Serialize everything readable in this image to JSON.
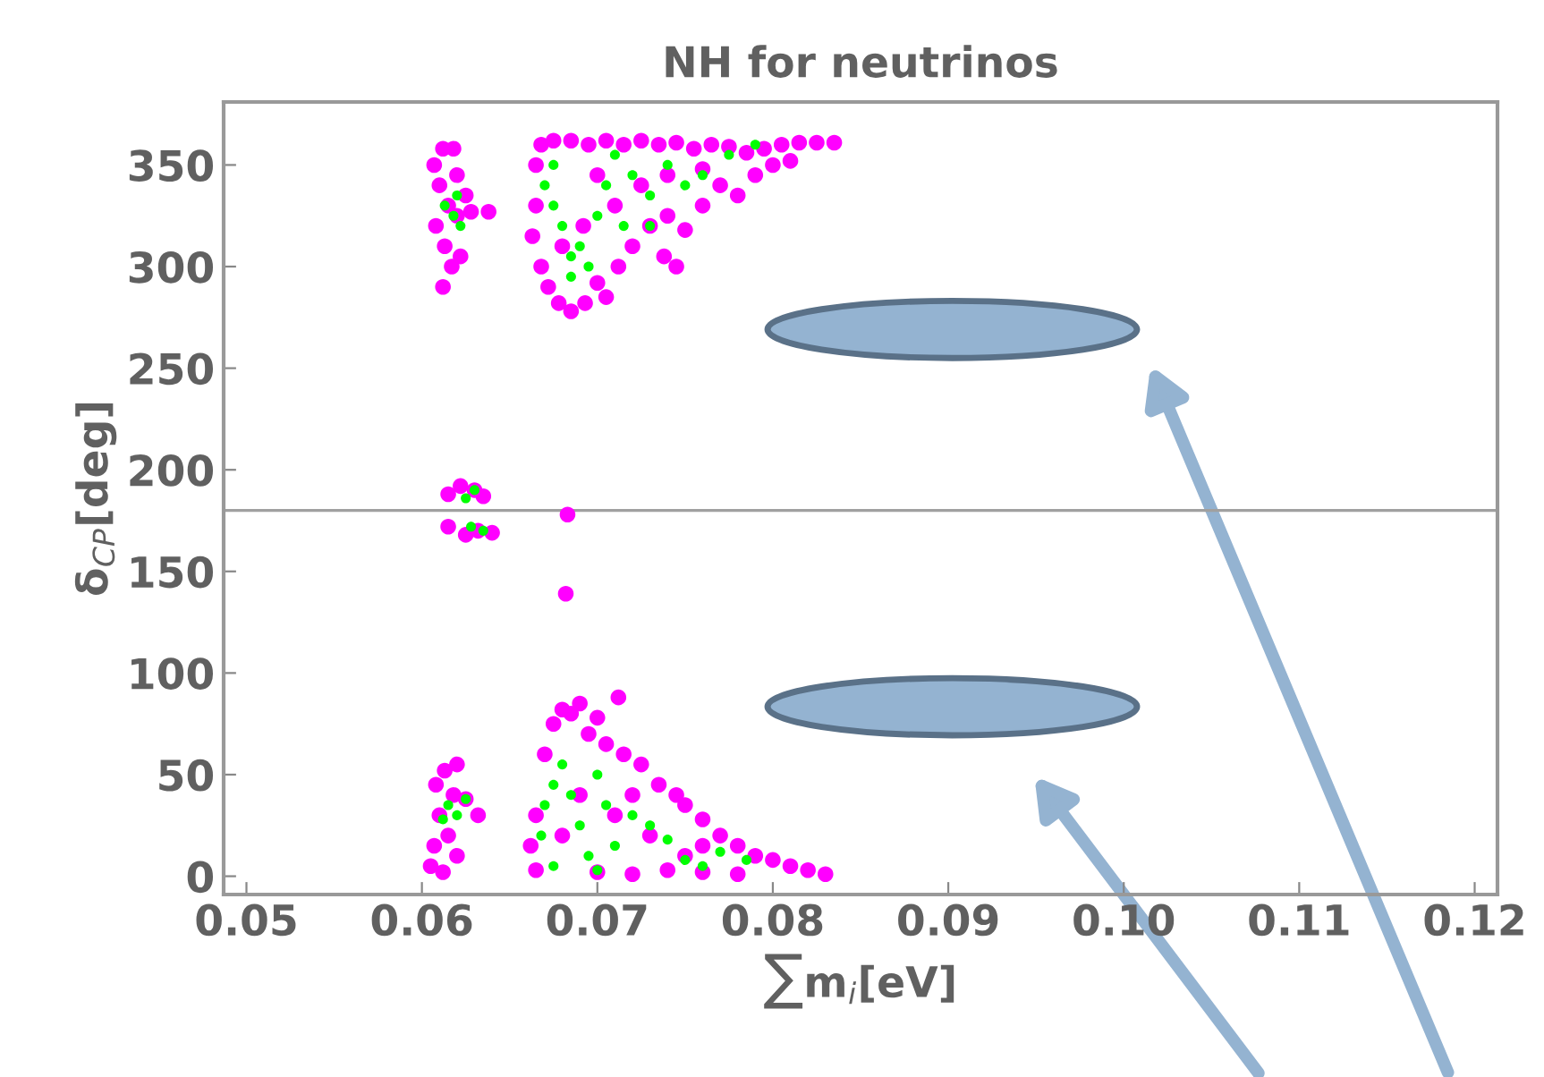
{
  "chart_data": {
    "type": "scatter",
    "title": "NH for neutrinos",
    "xlabel": "∑m$_{i}$[eV]",
    "ylabel": "δ$_{CP}$[deg]",
    "xlim": [
      0.0487,
      0.1213
    ],
    "ylim": [
      -9,
      381
    ],
    "xticks": [
      0.05,
      0.06,
      0.07,
      0.08,
      0.09,
      {
        "value": 0.1,
        "label": "0.10"
      },
      0.11,
      0.12
    ],
    "yticks": [
      0,
      50,
      100,
      150,
      200,
      250,
      300,
      350
    ],
    "grid": false,
    "marker": "circle",
    "ref_lines": [
      {
        "axis": "y",
        "value": 180,
        "color": "#a0a0a0"
      }
    ],
    "series": [
      {
        "color": "#ff00ff",
        "x": [
          0.0607,
          0.0612,
          0.0618,
          0.061,
          0.0615,
          0.062,
          0.0608,
          0.0613,
          0.0617,
          0.0612,
          0.062,
          0.0628,
          0.0638,
          0.0625,
          0.0622,
          0.0665,
          0.0668,
          0.0675,
          0.0685,
          0.0695,
          0.0705,
          0.0715,
          0.0725,
          0.0735,
          0.0745,
          0.0755,
          0.0765,
          0.0775,
          0.0785,
          0.0795,
          0.0805,
          0.0815,
          0.0825,
          0.0835,
          0.0665,
          0.0663,
          0.0668,
          0.0672,
          0.0678,
          0.0685,
          0.0693,
          0.07,
          0.0705,
          0.0712,
          0.072,
          0.073,
          0.0738,
          0.0745,
          0.075,
          0.076,
          0.077,
          0.078,
          0.079,
          0.08,
          0.081,
          0.0692,
          0.071,
          0.0725,
          0.074,
          0.076,
          0.07,
          0.068,
          0.074,
          0.0615,
          0.0622,
          0.063,
          0.0635,
          0.0615,
          0.0625,
          0.0632,
          0.064,
          0.0683,
          0.0682,
          0.0605,
          0.0607,
          0.061,
          0.0608,
          0.0613,
          0.062,
          0.0618,
          0.0615,
          0.0612,
          0.0625,
          0.0632,
          0.062,
          0.0665,
          0.0662,
          0.0665,
          0.067,
          0.0675,
          0.068,
          0.0685,
          0.069,
          0.0695,
          0.07,
          0.0705,
          0.0715,
          0.0725,
          0.0735,
          0.0745,
          0.075,
          0.076,
          0.077,
          0.078,
          0.079,
          0.08,
          0.081,
          0.082,
          0.083,
          0.07,
          0.072,
          0.074,
          0.076,
          0.078,
          0.071,
          0.073,
          0.075,
          0.069,
          0.068,
          0.072,
          0.076,
          0.0712
        ],
        "values": [
          350,
          358,
          358,
          340,
          330,
          345,
          320,
          310,
          300,
          290,
          325,
          327,
          327,
          335,
          305,
          350,
          360,
          362,
          362,
          360,
          362,
          360,
          362,
          360,
          361,
          358,
          360,
          359,
          356,
          358,
          360,
          361,
          361,
          361,
          330,
          315,
          300,
          290,
          282,
          278,
          282,
          292,
          285,
          300,
          310,
          320,
          305,
          300,
          318,
          330,
          340,
          335,
          345,
          350,
          352,
          320,
          330,
          340,
          345,
          348,
          345,
          310,
          325,
          188,
          192,
          190,
          187,
          172,
          168,
          170,
          169,
          178,
          139,
          5,
          15,
          30,
          45,
          52,
          55,
          40,
          20,
          2,
          38,
          30,
          10,
          30,
          15,
          3,
          60,
          75,
          82,
          80,
          85,
          70,
          78,
          65,
          60,
          55,
          45,
          40,
          35,
          28,
          20,
          15,
          10,
          8,
          5,
          3,
          1,
          2,
          1,
          3,
          2,
          1,
          30,
          20,
          10,
          40,
          20,
          40,
          15,
          88
        ]
      },
      {
        "color": "#00ff00",
        "x": [
          0.0613,
          0.0618,
          0.062,
          0.0622,
          0.067,
          0.0675,
          0.068,
          0.0685,
          0.069,
          0.0695,
          0.0685,
          0.07,
          0.0705,
          0.071,
          0.072,
          0.073,
          0.074,
          0.075,
          0.076,
          0.0775,
          0.079,
          0.0715,
          0.073,
          0.0675,
          0.0625,
          0.063,
          0.0628,
          0.0635,
          0.0615,
          0.062,
          0.0625,
          0.0612,
          0.0668,
          0.067,
          0.0675,
          0.068,
          0.0685,
          0.069,
          0.0695,
          0.07,
          0.0705,
          0.071,
          0.072,
          0.073,
          0.074,
          0.075,
          0.076,
          0.077,
          0.0785,
          0.0675,
          0.07
        ],
        "values": [
          330,
          325,
          335,
          320,
          340,
          330,
          320,
          305,
          310,
          300,
          295,
          325,
          340,
          355,
          345,
          335,
          350,
          340,
          345,
          355,
          360,
          320,
          320,
          350,
          186,
          190,
          172,
          170,
          35,
          30,
          38,
          28,
          20,
          35,
          45,
          55,
          40,
          25,
          10,
          50,
          35,
          15,
          30,
          25,
          18,
          8,
          5,
          12,
          8,
          5,
          3
        ]
      }
    ]
  }
}
